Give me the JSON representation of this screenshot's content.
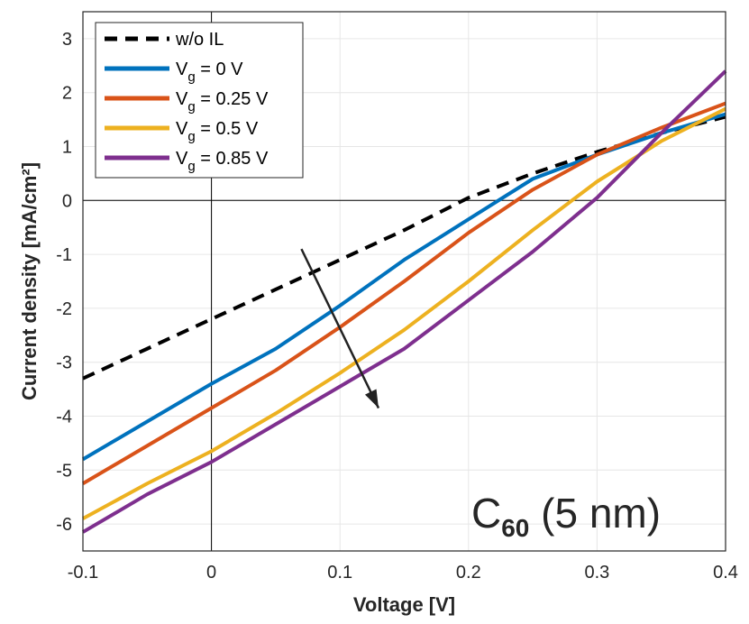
{
  "chart_data": {
    "type": "line",
    "xlabel": "Voltage [V]",
    "ylabel": "Current density [mA/cm²]",
    "xlim": [
      -0.1,
      0.4
    ],
    "ylim": [
      -6.5,
      3.5
    ],
    "xticks": [
      "-0.1",
      "0",
      "0.1",
      "0.2",
      "0.3",
      "0.4"
    ],
    "yticks": [
      "3",
      "2",
      "1",
      "0",
      "-1",
      "-2",
      "-3",
      "-4",
      "-5",
      "-6"
    ],
    "grid": true,
    "legend_position": "top-left",
    "x": [
      -0.1,
      -0.05,
      0,
      0.05,
      0.1,
      0.15,
      0.2,
      0.25,
      0.3,
      0.35,
      0.4
    ],
    "series": [
      {
        "name": "w/o IL",
        "color": "#000000",
        "dashed": true,
        "values": [
          -3.3,
          -2.75,
          -2.2,
          -1.65,
          -1.1,
          -0.55,
          0.05,
          0.5,
          0.9,
          1.25,
          1.55
        ]
      },
      {
        "name": "Vg = 0 V",
        "name_main": "V",
        "name_sub": "g",
        "name_rest": " = 0 V",
        "color": "#0072BD",
        "values": [
          -4.8,
          -4.1,
          -3.4,
          -2.75,
          -1.95,
          -1.1,
          -0.35,
          0.4,
          0.85,
          1.25,
          1.6
        ]
      },
      {
        "name": "Vg = 0.25 V",
        "name_main": "V",
        "name_sub": "g",
        "name_rest": " = 0.25 V",
        "color": "#D95319",
        "values": [
          -5.25,
          -4.55,
          -3.85,
          -3.15,
          -2.35,
          -1.5,
          -0.6,
          0.2,
          0.85,
          1.35,
          1.8
        ]
      },
      {
        "name": "Vg = 0.5 V",
        "name_main": "V",
        "name_sub": "g",
        "name_rest": " = 0.5 V",
        "color": "#EDB120",
        "values": [
          -5.9,
          -5.25,
          -4.65,
          -3.95,
          -3.2,
          -2.4,
          -1.5,
          -0.55,
          0.35,
          1.1,
          1.7
        ]
      },
      {
        "name": "Vg = 0.85 V",
        "name_main": "V",
        "name_sub": "g",
        "name_rest": " = 0.85 V",
        "color": "#7E2F8E",
        "values": [
          -6.15,
          -5.45,
          -4.85,
          -4.15,
          -3.45,
          -2.75,
          -1.85,
          -0.95,
          0.05,
          1.25,
          2.4
        ]
      }
    ],
    "arrow": {
      "from": [
        0.07,
        -0.9
      ],
      "to": [
        0.13,
        -3.85
      ]
    },
    "annotation": {
      "main": "C",
      "sub": "60",
      "rest": " (5 nm)"
    }
  }
}
